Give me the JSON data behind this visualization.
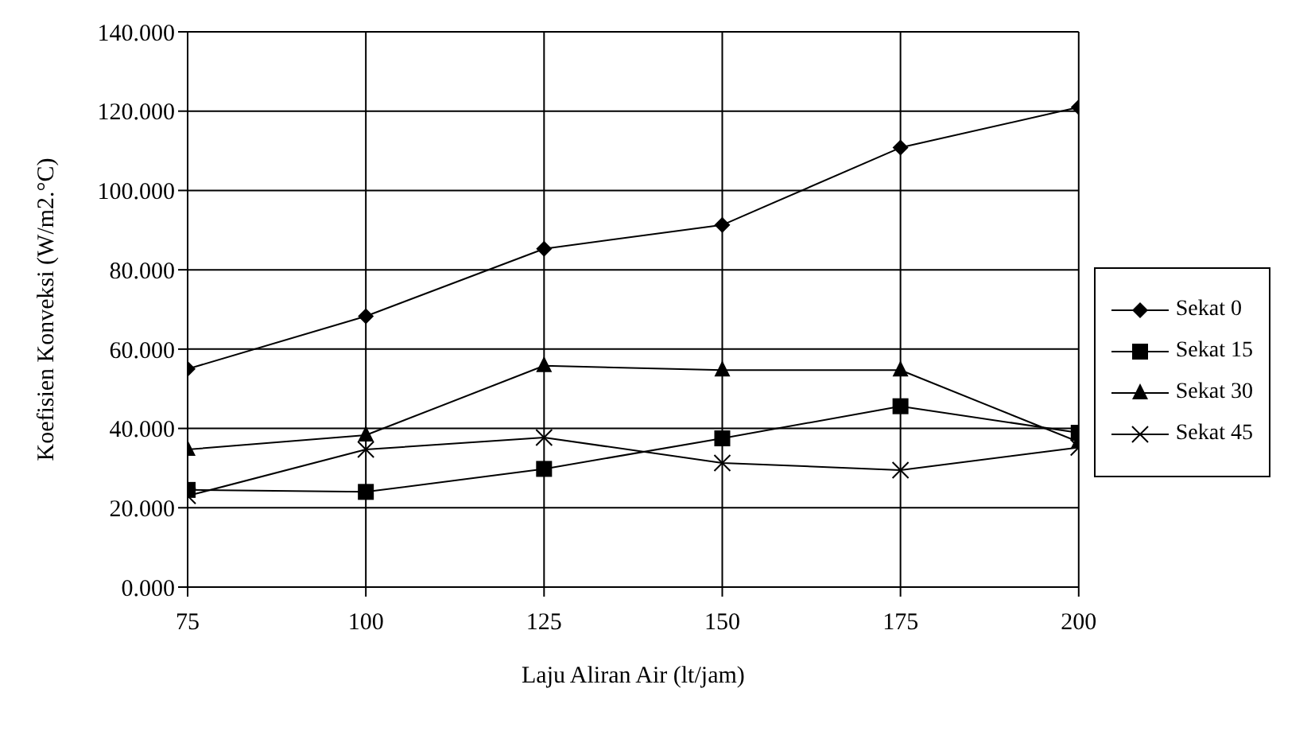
{
  "chart_data": {
    "type": "line",
    "xlabel": "Laju Aliran Air (lt/jam)",
    "ylabel": "Koefisien Konveksi (W/m2.°C)",
    "x": [
      75,
      100,
      125,
      150,
      175,
      200
    ],
    "xlim": [
      75,
      200
    ],
    "xticks": [
      75,
      100,
      125,
      150,
      175,
      200
    ],
    "ylim": [
      0,
      140
    ],
    "yticks": [
      {
        "value": 0,
        "label": "0.000"
      },
      {
        "value": 20,
        "label": "20.000"
      },
      {
        "value": 40,
        "label": "40.000"
      },
      {
        "value": 60,
        "label": "60.000"
      },
      {
        "value": 80,
        "label": "80.000"
      },
      {
        "value": 100,
        "label": "100.000"
      },
      {
        "value": 120,
        "label": "120.000"
      },
      {
        "value": 140,
        "label": "140.000"
      }
    ],
    "grid": true,
    "legend": "right",
    "line_style": "solid",
    "series": [
      {
        "name": "Sekat 0",
        "color": "#000000",
        "marker": "diamond",
        "values": [
          55,
          68.3,
          85.3,
          91.3,
          110.8,
          121
        ]
      },
      {
        "name": "Sekat 15",
        "color": "#000000",
        "marker": "square",
        "values": [
          24.5,
          24,
          29.8,
          37.5,
          45.6,
          38.9
        ]
      },
      {
        "name": "Sekat 30",
        "color": "#000000",
        "marker": "triangle",
        "values": [
          34.7,
          38.3,
          55.8,
          54.7,
          54.7,
          36.6
        ]
      },
      {
        "name": "Sekat 45",
        "color": "#000000",
        "marker": "cross",
        "values": [
          23,
          34.7,
          37.7,
          31.3,
          29.5,
          35.2
        ]
      }
    ]
  }
}
